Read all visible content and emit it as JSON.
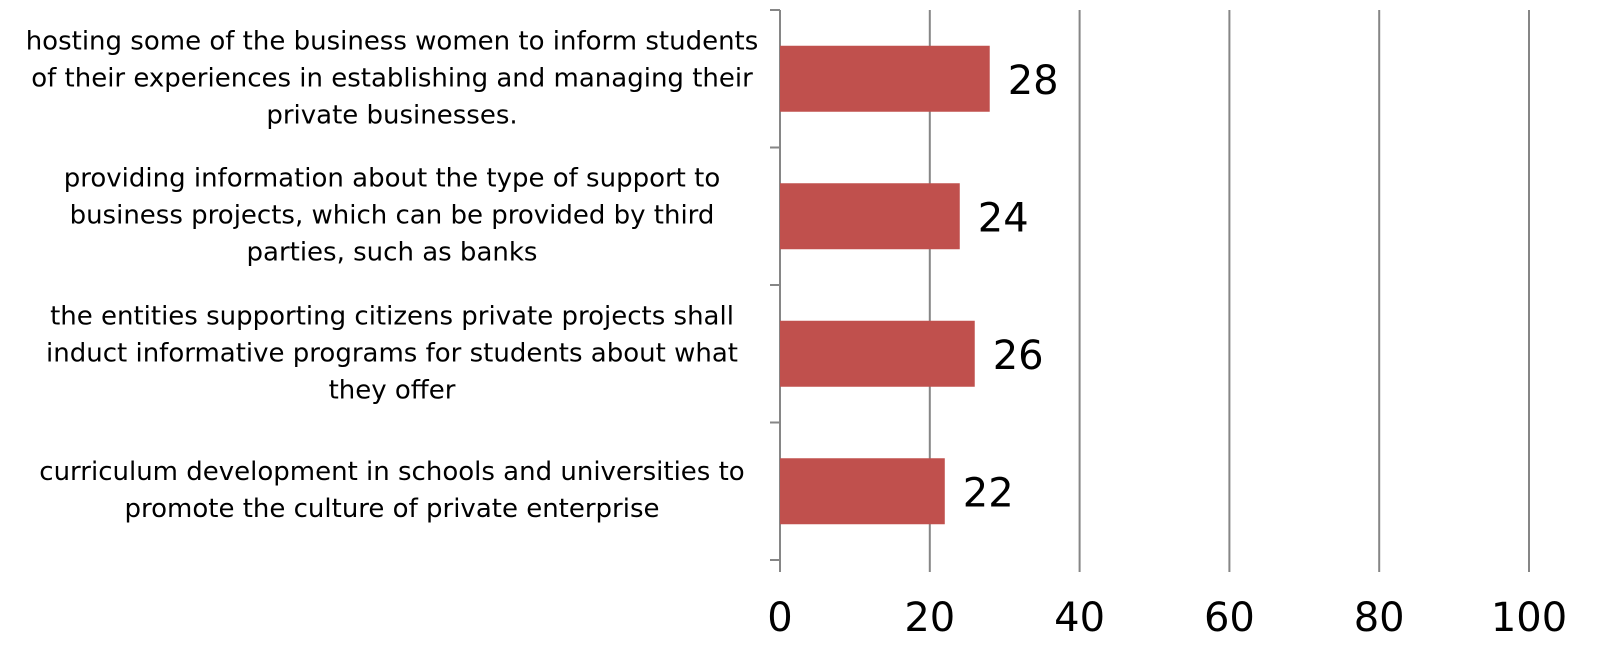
{
  "chart_data": {
    "type": "barh",
    "categories": [
      "hosting some of the business women to inform students of their experiences in establishing and managing their private businesses.",
      "providing information about the type of support to business projects, which can be provided by third parties, such as banks",
      "the entities supporting citizens private projects shall induct informative programs for students about what they offer",
      "curriculum development in schools and universities to promote the culture of private enterprise"
    ],
    "values": [
      28,
      24,
      26,
      22
    ],
    "color": "#c0504d",
    "xlim": [
      0,
      100
    ],
    "xticks": [
      0,
      20,
      40,
      60,
      80,
      100
    ],
    "grid": true
  }
}
